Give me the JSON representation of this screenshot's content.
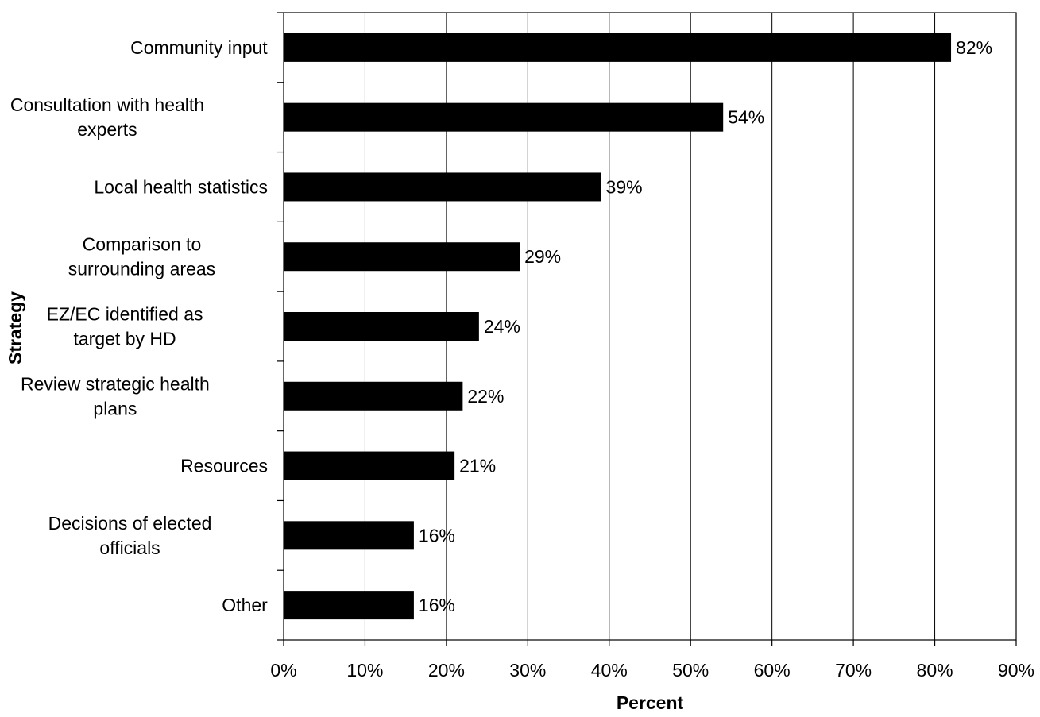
{
  "chart_data": {
    "type": "bar",
    "orientation": "horizontal",
    "title": "",
    "xlabel": "Percent",
    "ylabel": "Strategy",
    "xlim": [
      0,
      90
    ],
    "xticks": [
      0,
      10,
      20,
      30,
      40,
      50,
      60,
      70,
      80,
      90
    ],
    "xtick_labels": [
      "0%",
      "10%",
      "20%",
      "30%",
      "40%",
      "50%",
      "60%",
      "70%",
      "80%",
      "90%"
    ],
    "grid": "vertical",
    "legend": "none",
    "bar_color": "#000000",
    "categories": [
      [
        "Community input"
      ],
      [
        "Consultation with health",
        "experts"
      ],
      [
        "Local health statistics"
      ],
      [
        "Comparison to",
        "surrounding areas"
      ],
      [
        "EZ/EC identified as",
        "target by HD"
      ],
      [
        "Review strategic health",
        "plans"
      ],
      [
        "Resources"
      ],
      [
        "Decisions of elected",
        "officials"
      ],
      [
        "Other"
      ]
    ],
    "values": [
      82,
      54,
      39,
      29,
      24,
      22,
      21,
      16,
      16
    ],
    "data_labels": [
      "82%",
      "54%",
      "39%",
      "29%",
      "24%",
      "22%",
      "21%",
      "16%",
      "16%"
    ]
  }
}
